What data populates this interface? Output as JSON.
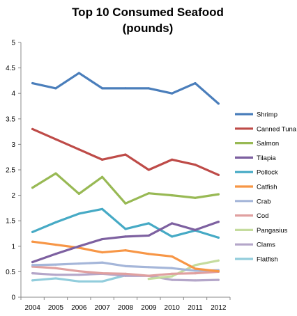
{
  "chart_data": {
    "type": "line",
    "title": [
      "Top 10 Consumed Seafood",
      "(pounds)"
    ],
    "xlabel": "",
    "ylabel": "",
    "x": [
      "2004",
      "2005",
      "2006",
      "2007",
      "2008",
      "2009",
      "2010",
      "2011",
      "2012"
    ],
    "ylim": [
      0,
      5
    ],
    "yticks": [
      "0",
      "0.5",
      "1",
      "1.5",
      "2",
      "2.5",
      "3",
      "3.5",
      "4",
      "4.5",
      "5"
    ],
    "grid": false,
    "legend_position": "right",
    "series": [
      {
        "name": "Shrimp",
        "color": "#4A7EBB",
        "values": [
          4.2,
          4.1,
          4.4,
          4.1,
          4.1,
          4.1,
          4.0,
          4.2,
          3.8
        ]
      },
      {
        "name": "Canned Tuna",
        "color": "#BE4B48",
        "values": [
          3.3,
          3.1,
          2.9,
          2.7,
          2.8,
          2.5,
          2.7,
          2.6,
          2.4
        ]
      },
      {
        "name": "Salmon",
        "color": "#98B954",
        "values": [
          2.15,
          2.43,
          2.03,
          2.36,
          1.84,
          2.04,
          2.0,
          1.95,
          2.02
        ]
      },
      {
        "name": "Tilapia",
        "color": "#7D60A0",
        "values": [
          0.69,
          0.85,
          1.0,
          1.14,
          1.19,
          1.21,
          1.45,
          1.32,
          1.48
        ]
      },
      {
        "name": "Pollock",
        "color": "#46AAC5",
        "values": [
          1.28,
          1.47,
          1.64,
          1.73,
          1.34,
          1.45,
          1.19,
          1.31,
          1.17
        ]
      },
      {
        "name": "Catfish",
        "color": "#F79646",
        "values": [
          1.09,
          1.03,
          0.97,
          0.88,
          0.92,
          0.85,
          0.8,
          0.56,
          0.51
        ]
      },
      {
        "name": "Crab",
        "color": "#A5B6D9",
        "values": [
          0.63,
          0.64,
          0.66,
          0.68,
          0.61,
          0.59,
          0.57,
          0.52,
          0.53
        ]
      },
      {
        "name": "Cod",
        "color": "#E0A0A0",
        "values": [
          0.6,
          0.57,
          0.51,
          0.47,
          0.46,
          0.42,
          0.46,
          0.47,
          0.5
        ]
      },
      {
        "name": "Pangasius",
        "color": "#C5DC9E",
        "values": [
          null,
          null,
          null,
          null,
          null,
          0.36,
          0.41,
          0.63,
          0.72
        ]
      },
      {
        "name": "Clams",
        "color": "#B4A6C9",
        "values": [
          0.47,
          0.44,
          0.44,
          0.46,
          0.42,
          0.42,
          0.34,
          0.33,
          0.34
        ]
      },
      {
        "name": "Flatfish",
        "color": "#92CDDC",
        "values": [
          0.33,
          0.37,
          0.31,
          0.31,
          0.43,
          null,
          null,
          null,
          null
        ]
      }
    ]
  }
}
